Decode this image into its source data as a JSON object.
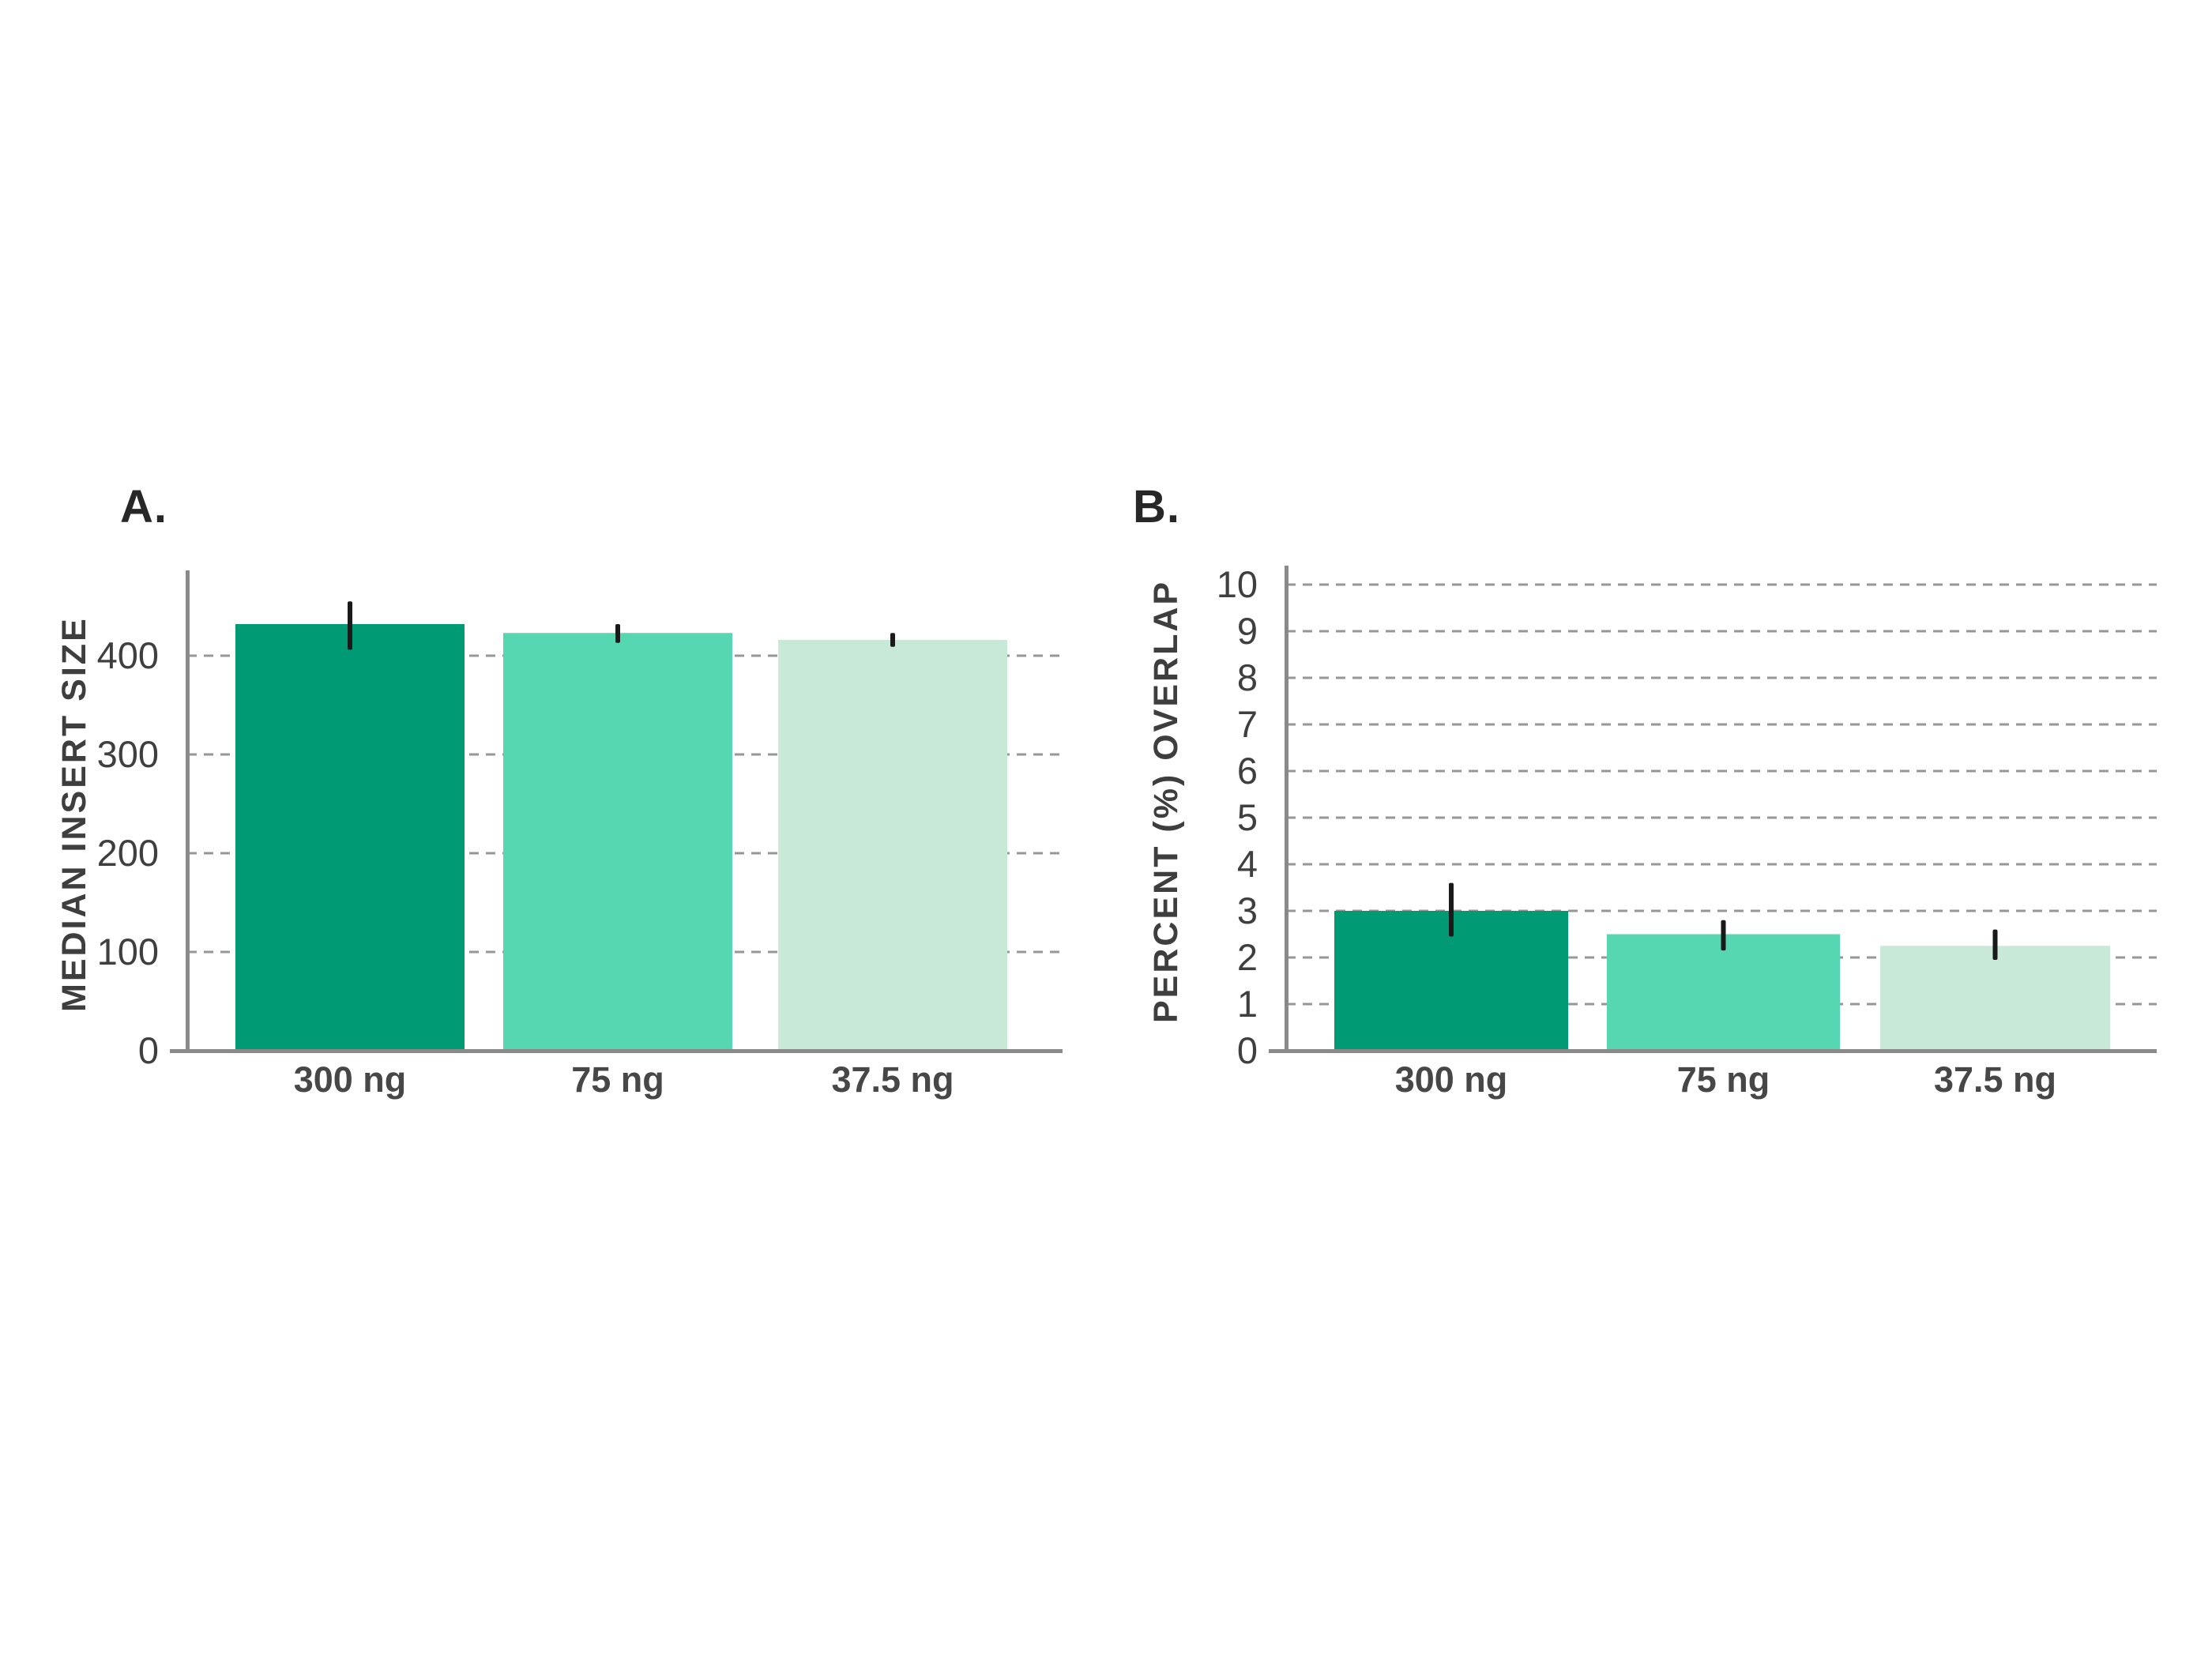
{
  "figure": {
    "background": "#FFFFFF",
    "panels": [
      "A.",
      "B."
    ]
  },
  "styles": {
    "axis_color": "#8A8A8A",
    "grid_color": "#979797",
    "error_bar_color": "#1A1A1A",
    "tick_text_color": "#3F3F3F",
    "category_text_color": "#474747",
    "bar_palette": [
      "#009A74",
      "#57D6B2",
      "#C8E8D8"
    ]
  },
  "chart_data": [
    {
      "type": "bar",
      "panel_label": "A.",
      "title": "",
      "xlabel": "",
      "ylabel": "MEDIAN INSERT SIZE",
      "categories": [
        "300 ng",
        "75 ng",
        "37.5 ng"
      ],
      "values": [
        432,
        423,
        416
      ],
      "error_low": [
        406,
        413,
        409
      ],
      "error_high": [
        455,
        432,
        423
      ],
      "yticks": [
        0,
        100,
        200,
        300,
        400
      ],
      "ylim": [
        0,
        484
      ],
      "grid": "dashed-horizontal",
      "legend": "none",
      "bar_colors": [
        "#009A74",
        "#57D6B2",
        "#C8E8D8"
      ]
    },
    {
      "type": "bar",
      "panel_label": "B.",
      "title": "",
      "xlabel": "",
      "ylabel": "PERCENT (%) OVERLAP",
      "categories": [
        "300 ng",
        "75 ng",
        "37.5 ng"
      ],
      "values": [
        3.0,
        2.5,
        2.25
      ],
      "error_low": [
        2.45,
        2.15,
        1.95
      ],
      "error_high": [
        3.6,
        2.8,
        2.6
      ],
      "yticks": [
        0,
        1,
        2,
        3,
        4,
        5,
        6,
        7,
        8,
        9,
        10
      ],
      "ylim": [
        0,
        10.4
      ],
      "grid": "dashed-horizontal",
      "legend": "none",
      "bar_colors": [
        "#009A74",
        "#57D6B2",
        "#C8E8D8"
      ]
    }
  ]
}
